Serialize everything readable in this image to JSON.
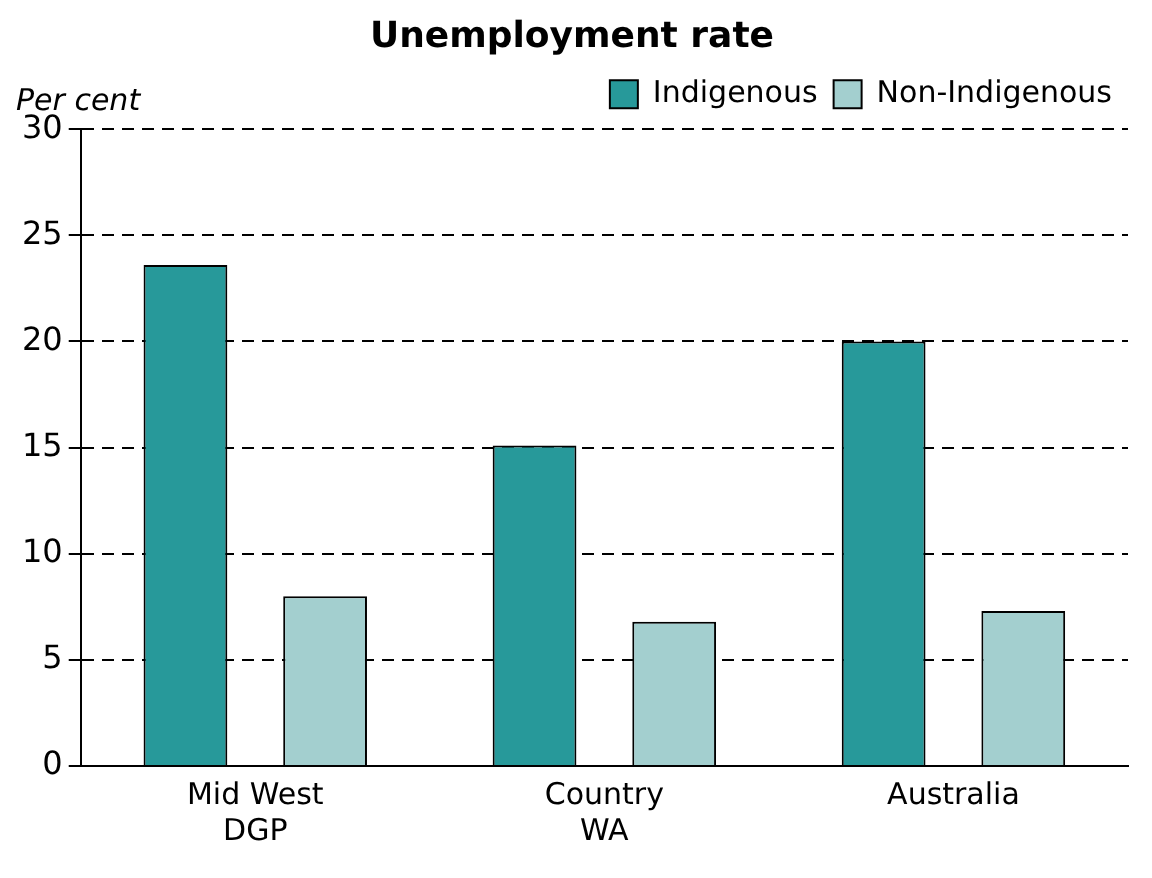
{
  "chart_data": {
    "type": "bar",
    "title": "Unemployment rate",
    "ylabel": "Per cent",
    "categories": [
      "Mid West DGP",
      "Country WA",
      "Australia"
    ],
    "series": [
      {
        "name": "Indigenous",
        "color": "#27999a",
        "values": [
          23.6,
          15.1,
          20.0
        ]
      },
      {
        "name": "Non-Indigenous",
        "color": "#a3cfcf",
        "values": [
          8.0,
          6.8,
          7.3
        ]
      }
    ],
    "ylim": [
      0,
      30
    ],
    "yticks": [
      0,
      5,
      10,
      15,
      20,
      25,
      30
    ],
    "grid": "y",
    "legend": "top right"
  }
}
